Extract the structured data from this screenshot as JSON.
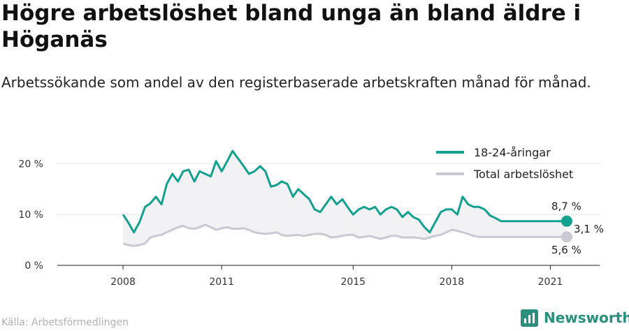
{
  "title": "Högre arbetslöshet bland unga än bland äldre i Höganäs",
  "subtitle": "Arbetssökande som andel av den registerbaserade arbetskraften månad för månad.",
  "source": "Källa: Arbetsförmedlingen",
  "brand": "Newsworthy",
  "colors": {
    "youth": "#13a08f",
    "total": "#c9c9d3",
    "band": "#f2f2f4",
    "brand": "#2a8f7d"
  },
  "chart_data": {
    "type": "line",
    "title": "Högre arbetslöshet bland unga än bland äldre i Höganäs",
    "ylim": [
      0,
      25
    ],
    "xlim": [
      2008.0,
      2022.0
    ],
    "y_ticks": [
      0,
      10,
      20
    ],
    "y_tick_labels": [
      "0 %",
      "10 %",
      "20 %"
    ],
    "x_ticks": [
      2008,
      2011,
      2015,
      2018,
      2021
    ],
    "x_tick_labels": [
      "2008",
      "2011",
      "2015",
      "2018",
      "2021"
    ],
    "legend_position": "top-right",
    "end_labels": {
      "youth": "8,7 %",
      "total": "5,6 %",
      "difference": "3,1 %"
    },
    "series": [
      {
        "key": "youth",
        "name": "18-24-åringar",
        "x": [
          2008.0,
          2008.17,
          2008.33,
          2008.5,
          2008.67,
          2008.83,
          2009.0,
          2009.17,
          2009.33,
          2009.5,
          2009.67,
          2009.83,
          2010.0,
          2010.17,
          2010.33,
          2010.5,
          2010.67,
          2010.83,
          2011.0,
          2011.17,
          2011.33,
          2011.5,
          2011.67,
          2011.83,
          2012.0,
          2012.17,
          2012.33,
          2012.5,
          2012.67,
          2012.83,
          2013.0,
          2013.17,
          2013.33,
          2013.5,
          2013.67,
          2013.83,
          2014.0,
          2014.17,
          2014.33,
          2014.5,
          2014.67,
          2014.83,
          2015.0,
          2015.17,
          2015.33,
          2015.5,
          2015.67,
          2015.83,
          2016.0,
          2016.17,
          2016.33,
          2016.5,
          2016.67,
          2016.83,
          2017.0,
          2017.17,
          2017.33,
          2017.5,
          2017.67,
          2017.83,
          2018.0,
          2018.17,
          2018.33,
          2018.5,
          2018.67,
          2018.83,
          2019.0,
          2019.17,
          2019.33,
          2019.5,
          2019.67,
          2019.83,
          2020.0,
          2020.17,
          2020.33,
          2020.5,
          2020.67,
          2020.83,
          2021.0,
          2021.17,
          2021.33,
          2021.5
        ],
        "y": [
          10.0,
          8.3,
          6.5,
          8.5,
          11.5,
          12.2,
          13.5,
          12.0,
          16.0,
          18.0,
          16.5,
          18.5,
          18.8,
          16.5,
          18.5,
          18.0,
          17.5,
          20.5,
          18.5,
          20.5,
          22.5,
          21.0,
          19.5,
          18.0,
          18.5,
          19.5,
          18.5,
          15.5,
          15.8,
          16.5,
          16.0,
          13.5,
          15.0,
          14.0,
          13.0,
          11.0,
          10.5,
          12.0,
          13.5,
          12.0,
          13.0,
          11.5,
          10.0,
          11.0,
          11.5,
          11.0,
          11.5,
          10.0,
          11.0,
          11.5,
          11.0,
          9.5,
          10.5,
          9.5,
          9.0,
          7.5,
          6.5,
          8.5,
          10.5,
          11.0,
          11.0,
          10.0,
          13.5,
          12.0,
          11.5,
          11.5,
          11.0,
          9.8,
          9.3,
          8.7,
          8.7,
          8.7,
          8.7,
          8.7,
          8.7,
          8.7,
          8.7,
          8.7,
          8.7,
          8.7,
          8.7,
          8.7
        ]
      },
      {
        "key": "total",
        "name": "Total arbetslöshet",
        "x": [
          2008.0,
          2008.17,
          2008.33,
          2008.5,
          2008.67,
          2008.83,
          2009.0,
          2009.17,
          2009.33,
          2009.5,
          2009.67,
          2009.83,
          2010.0,
          2010.17,
          2010.33,
          2010.5,
          2010.67,
          2010.83,
          2011.0,
          2011.17,
          2011.33,
          2011.5,
          2011.67,
          2011.83,
          2012.0,
          2012.17,
          2012.33,
          2012.5,
          2012.67,
          2012.83,
          2013.0,
          2013.17,
          2013.33,
          2013.5,
          2013.67,
          2013.83,
          2014.0,
          2014.17,
          2014.33,
          2014.5,
          2014.67,
          2014.83,
          2015.0,
          2015.17,
          2015.33,
          2015.5,
          2015.67,
          2015.83,
          2016.0,
          2016.17,
          2016.33,
          2016.5,
          2016.67,
          2016.83,
          2017.0,
          2017.17,
          2017.33,
          2017.5,
          2017.67,
          2017.83,
          2018.0,
          2018.17,
          2018.33,
          2018.5,
          2018.67,
          2018.83,
          2019.0,
          2019.17,
          2019.33,
          2019.5,
          2019.67,
          2019.83,
          2020.0,
          2020.17,
          2020.33,
          2020.5,
          2020.67,
          2020.83,
          2021.0,
          2021.17,
          2021.33,
          2021.5
        ],
        "y": [
          4.3,
          4.0,
          3.8,
          4.0,
          4.3,
          5.5,
          5.8,
          6.0,
          6.5,
          7.0,
          7.5,
          7.8,
          7.3,
          7.2,
          7.5,
          8.0,
          7.5,
          7.0,
          7.3,
          7.5,
          7.2,
          7.2,
          7.3,
          7.0,
          6.5,
          6.3,
          6.2,
          6.3,
          6.5,
          6.0,
          5.8,
          5.9,
          6.0,
          5.8,
          6.0,
          6.2,
          6.2,
          6.0,
          5.5,
          5.6,
          5.8,
          6.0,
          6.0,
          5.5,
          5.6,
          5.8,
          5.5,
          5.2,
          5.5,
          5.8,
          5.8,
          5.5,
          5.5,
          5.5,
          5.4,
          5.2,
          5.5,
          5.8,
          6.0,
          6.5,
          7.0,
          6.8,
          6.5,
          6.2,
          5.8,
          5.6,
          5.6,
          5.6,
          5.6,
          5.6,
          5.6,
          5.6,
          5.6,
          5.6,
          5.6,
          5.6,
          5.6,
          5.6,
          5.6,
          5.6,
          5.6,
          5.6
        ]
      }
    ]
  }
}
